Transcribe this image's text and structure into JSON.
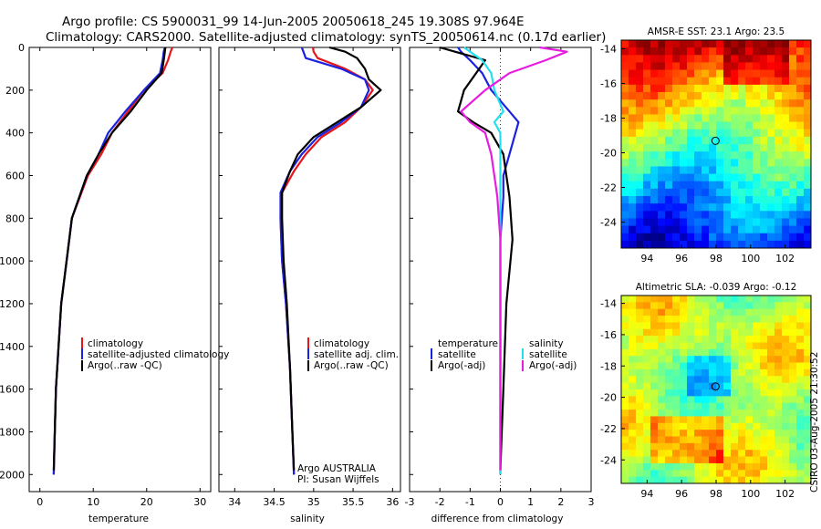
{
  "title": {
    "line1": "Argo profile: CS 5900031_99 14-Jun-2005 20050618_245 19.308S 97.964E",
    "line2": "Climatology: CARS2000. Satellite-adjusted climatology: synTS_20050614.nc (0.17d earlier)"
  },
  "colors": {
    "climatology": "#e8141a",
    "satellite": "#1a22e0",
    "argo": "#000000",
    "sat_salinity": "#22e0ee",
    "argo_salinity": "#e81ce0"
  },
  "chart_data": [
    {
      "type": "line",
      "id": "temperature",
      "xlabel": "temperature",
      "ylabel": "",
      "xlim": [
        -2,
        32
      ],
      "ylim": [
        0,
        2080
      ],
      "y_reversed": true,
      "xticks": [
        0,
        10,
        20,
        30
      ],
      "yticks": [
        0,
        200,
        400,
        600,
        800,
        1000,
        1200,
        1400,
        1600,
        1800,
        2000
      ],
      "legend": [
        "climatology",
        "satellite-adjusted climatology",
        "Argo(..raw -QC)"
      ],
      "series": [
        {
          "name": "climatology",
          "color": "#e8141a",
          "x": [
            24.8,
            24.5,
            24.0,
            23.0,
            19.5,
            16.5,
            13.5,
            11.5,
            9.0,
            7.5,
            6.0,
            5.0,
            4.0,
            3.0,
            2.6
          ],
          "y": [
            0,
            20,
            60,
            120,
            200,
            300,
            400,
            500,
            600,
            700,
            800,
            1000,
            1200,
            1600,
            2000
          ]
        },
        {
          "name": "satellite-adjusted climatology",
          "color": "#1a22e0",
          "x": [
            23.4,
            23.2,
            23.0,
            22.5,
            19.5,
            16.0,
            12.8,
            11.0,
            8.8,
            7.4,
            6.0,
            5.0,
            4.0,
            3.0,
            2.6
          ],
          "y": [
            0,
            20,
            60,
            120,
            200,
            300,
            400,
            500,
            600,
            700,
            800,
            1000,
            1200,
            1600,
            2000
          ]
        },
        {
          "name": "Argo(..raw -QC)",
          "color": "#000000",
          "x": [
            23.5,
            23.4,
            23.2,
            22.8,
            20.0,
            17.0,
            13.5,
            11.0,
            8.8,
            7.4,
            6.0,
            5.0,
            4.0,
            3.0,
            2.6
          ],
          "y": [
            0,
            20,
            60,
            120,
            200,
            300,
            400,
            500,
            600,
            700,
            800,
            1000,
            1200,
            1600,
            1980
          ]
        }
      ]
    },
    {
      "type": "line",
      "id": "salinity",
      "xlabel": "salinity",
      "ylabel": "",
      "xlim": [
        33.8,
        36.1
      ],
      "ylim": [
        0,
        2080
      ],
      "y_reversed": true,
      "xticks": [
        34,
        34.5,
        35,
        35.5,
        36
      ],
      "legend": [
        "climatology",
        "satellite adj. clim.",
        "Argo(..raw -QC)"
      ],
      "annotation": [
        "Argo AUSTRALIA",
        "PI: Susan Wijffels"
      ],
      "series": [
        {
          "name": "climatology",
          "color": "#e8141a",
          "x": [
            34.99,
            35.0,
            35.05,
            35.4,
            35.65,
            35.75,
            35.6,
            35.4,
            35.1,
            34.9,
            34.75,
            34.6,
            34.58,
            34.6,
            34.65,
            34.7,
            34.73,
            34.75
          ],
          "y": [
            0,
            20,
            50,
            100,
            150,
            200,
            280,
            350,
            420,
            500,
            580,
            680,
            800,
            1000,
            1200,
            1500,
            1800,
            2000
          ]
        },
        {
          "name": "satellite adj. clim.",
          "color": "#1a22e0",
          "x": [
            34.85,
            34.87,
            34.9,
            35.35,
            35.65,
            35.7,
            35.6,
            35.35,
            35.05,
            34.85,
            34.7,
            34.58,
            34.58,
            34.6,
            34.65,
            34.7,
            34.73,
            34.75
          ],
          "y": [
            0,
            20,
            50,
            100,
            150,
            200,
            280,
            350,
            420,
            500,
            580,
            680,
            800,
            1000,
            1200,
            1500,
            1800,
            2000
          ]
        },
        {
          "name": "Argo(..raw -QC)",
          "color": "#000000",
          "x": [
            35.2,
            35.4,
            35.55,
            35.65,
            35.7,
            35.85,
            35.6,
            35.3,
            35.0,
            34.8,
            34.7,
            34.6,
            34.6,
            34.62,
            34.66,
            34.7,
            34.73,
            34.75
          ],
          "y": [
            0,
            20,
            50,
            100,
            150,
            200,
            280,
            350,
            420,
            500,
            580,
            680,
            800,
            1000,
            1200,
            1500,
            1800,
            1980
          ]
        }
      ]
    },
    {
      "type": "line",
      "id": "difference",
      "xlabel": "difference from climatology",
      "ylabel": "",
      "xlim": [
        -3,
        3
      ],
      "ylim": [
        0,
        2080
      ],
      "y_reversed": true,
      "xticks": [
        -3,
        -2,
        -1,
        0,
        1,
        2,
        3
      ],
      "legend_left": [
        "temperature",
        "satellite",
        "Argo(-adj)"
      ],
      "legend_right": [
        "salinity",
        "satellite",
        "Argo(-adj)"
      ],
      "series": [
        {
          "name": "temperature satellite",
          "color": "#1a22e0",
          "x": [
            -1.4,
            -1.3,
            -1.0,
            -0.6,
            -0.3,
            0.3,
            0.6,
            0.5,
            0.3,
            0.1,
            0.1,
            0.0,
            0.0,
            0.0,
            0.0
          ],
          "y": [
            0,
            20,
            60,
            120,
            200,
            300,
            350,
            400,
            500,
            600,
            700,
            900,
            1200,
            1600,
            2000
          ]
        },
        {
          "name": "temperature Argo(-adj)",
          "color": "#000000",
          "x": [
            -2.0,
            -1.5,
            -0.5,
            -0.8,
            -1.2,
            -1.4,
            -0.9,
            -0.3,
            0.1,
            0.2,
            0.3,
            0.4,
            0.2,
            0.1,
            0.0
          ],
          "y": [
            0,
            20,
            60,
            120,
            200,
            300,
            350,
            400,
            500,
            600,
            700,
            900,
            1200,
            1600,
            1980
          ]
        },
        {
          "name": "salinity satellite",
          "color": "#22e0ee",
          "x": [
            -1.2,
            -1.0,
            -0.6,
            -0.3,
            -0.2,
            0.1,
            -0.2,
            0.0,
            0.0,
            0.0,
            0.0,
            0.0,
            0.0,
            0.0,
            0.0
          ],
          "y": [
            0,
            20,
            60,
            120,
            200,
            300,
            350,
            400,
            500,
            600,
            700,
            900,
            1200,
            1600,
            2000
          ]
        },
        {
          "name": "salinity Argo(-adj)",
          "color": "#e81ce0",
          "x": [
            1.3,
            2.2,
            1.5,
            0.3,
            -0.5,
            -1.3,
            -1.0,
            -0.5,
            -0.3,
            -0.2,
            -0.1,
            0.0,
            0.0,
            0.0,
            0.0
          ],
          "y": [
            0,
            20,
            60,
            120,
            200,
            300,
            350,
            400,
            500,
            600,
            700,
            900,
            1200,
            1600,
            1980
          ]
        }
      ]
    },
    {
      "type": "heatmap",
      "id": "sst_map",
      "title": "AMSR-E SST: 23.1 Argo: 23.5",
      "xlim": [
        92.5,
        103.5
      ],
      "ylim": [
        -25.5,
        -13.5
      ],
      "xticks": [
        94,
        96,
        98,
        100,
        102
      ],
      "yticks": [
        -14,
        -16,
        -18,
        -20,
        -22,
        -24
      ],
      "marker": {
        "lon": 97.964,
        "lat": -19.308
      }
    },
    {
      "type": "heatmap",
      "id": "sla_map",
      "title": "Altimetric SLA: -0.039 Argo: -0.12",
      "xlim": [
        92.5,
        103.5
      ],
      "ylim": [
        -25.5,
        -13.5
      ],
      "xticks": [
        94,
        96,
        98,
        100,
        102
      ],
      "yticks": [
        -14,
        -16,
        -18,
        -20,
        -22,
        -24
      ],
      "marker": {
        "lon": 97.964,
        "lat": -19.308
      }
    }
  ],
  "credit": "CSIRO 03-Aug-2005 21:30:52"
}
